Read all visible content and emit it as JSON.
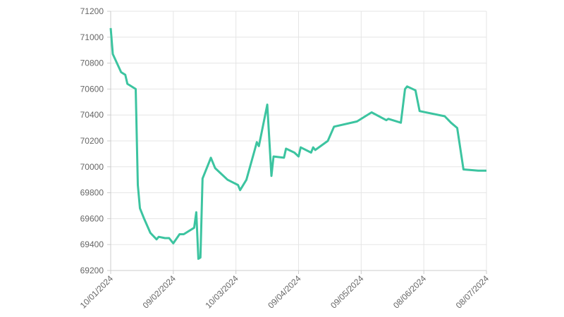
{
  "chart_data": {
    "type": "line",
    "x": [
      "10/01/2024",
      "11/01/2024",
      "15/01/2024",
      "17/01/2024",
      "18/01/2024",
      "22/01/2024",
      "23/01/2024",
      "24/01/2024",
      "26/01/2024",
      "29/01/2024",
      "01/02/2024",
      "02/02/2024",
      "05/02/2024",
      "07/02/2024",
      "09/02/2024",
      "12/02/2024",
      "14/02/2024",
      "19/02/2024",
      "20/02/2024",
      "21/02/2024",
      "22/02/2024",
      "23/02/2024",
      "26/02/2024",
      "27/02/2024",
      "29/02/2024",
      "06/03/2024",
      "11/03/2024",
      "12/03/2024",
      "15/03/2024",
      "19/03/2024",
      "20/03/2024",
      "21/03/2024",
      "25/03/2024",
      "27/03/2024",
      "28/03/2024",
      "02/04/2024",
      "03/04/2024",
      "07/04/2024",
      "09/04/2024",
      "10/04/2024",
      "15/04/2024",
      "16/04/2024",
      "17/04/2024",
      "23/04/2024",
      "26/04/2024",
      "07/05/2024",
      "14/05/2024",
      "21/05/2024",
      "22/05/2024",
      "28/05/2024",
      "30/05/2024",
      "31/05/2024",
      "04/06/2024",
      "06/06/2024",
      "18/06/2024",
      "21/06/2024",
      "24/06/2024",
      "27/06/2024",
      "04/07/2024",
      "08/07/2024"
    ],
    "series": [
      {
        "color": "#3cc4a0",
        "values": [
          71070,
          70870,
          70730,
          70710,
          70640,
          70600,
          69860,
          69680,
          69600,
          69490,
          69440,
          69460,
          69450,
          69450,
          69410,
          69480,
          69480,
          69530,
          69650,
          69290,
          69300,
          69910,
          70030,
          70070,
          69990,
          69900,
          69860,
          69820,
          69900,
          70130,
          70190,
          70160,
          70480,
          69930,
          70080,
          70070,
          70140,
          70110,
          70080,
          70150,
          70110,
          70150,
          70130,
          70200,
          70310,
          70350,
          70420,
          70360,
          70370,
          70340,
          70600,
          70620,
          70590,
          70430,
          70390,
          70340,
          70300,
          69980,
          69970,
          69970
        ]
      }
    ],
    "xlim": [
      "10/01/2024",
      "08/07/2024"
    ],
    "xticks": [
      "10/01/2024",
      "09/02/2024",
      "10/03/2024",
      "09/04/2024",
      "09/05/2024",
      "08/06/2024",
      "08/07/2024"
    ],
    "ylim": [
      69200,
      71200
    ],
    "yticks": [
      69200,
      69400,
      69600,
      69800,
      70000,
      70200,
      70400,
      70600,
      70800,
      71000,
      71200
    ],
    "grid": true
  }
}
